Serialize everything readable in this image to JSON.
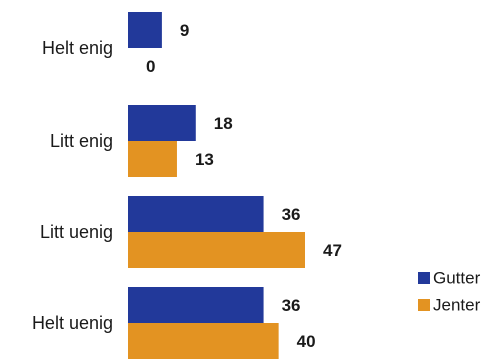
{
  "chart_data": {
    "type": "bar",
    "orientation": "horizontal",
    "categories": [
      "Helt enig",
      "Litt enig",
      "Litt uenig",
      "Helt uenig"
    ],
    "series": [
      {
        "name": "Gutter",
        "values": [
          9,
          18,
          36,
          36
        ],
        "color": "#22399a"
      },
      {
        "name": "Jenter",
        "values": [
          0,
          13,
          47,
          40
        ],
        "color": "#e39322"
      }
    ],
    "xlim": [
      0,
      50
    ],
    "grid": false,
    "legend_position": "right-bottom"
  }
}
